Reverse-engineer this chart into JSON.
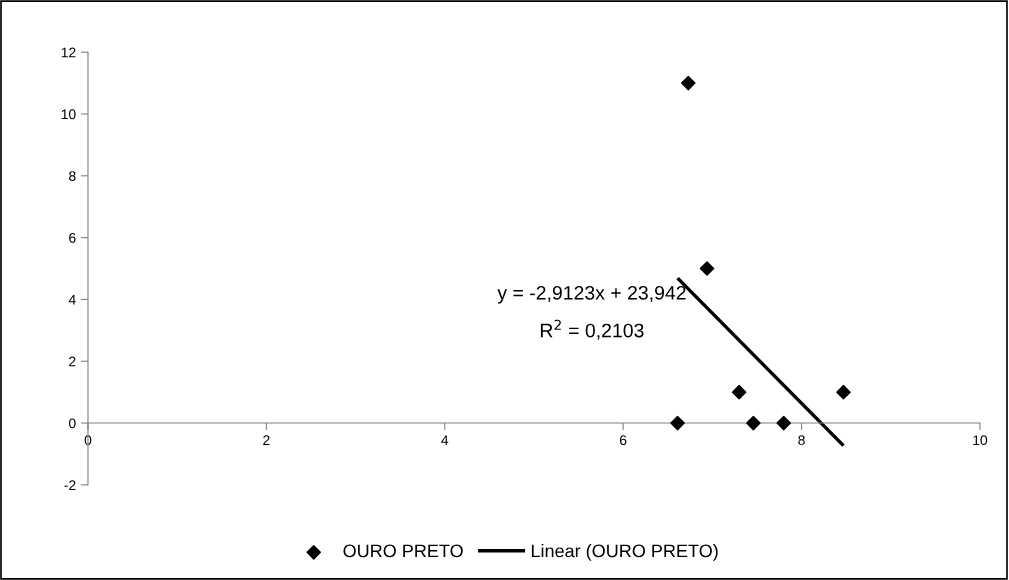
{
  "chart_data": {
    "type": "scatter",
    "xlim": [
      0,
      10
    ],
    "xticks": [
      0,
      2,
      4,
      6,
      8,
      10
    ],
    "ylim": [
      -2,
      12
    ],
    "yticks": [
      -2,
      0,
      2,
      4,
      6,
      8,
      10,
      12
    ],
    "grid": false,
    "legend": "bottom",
    "marker": "diamond",
    "annotations": [
      "y = -2,9123x + 23,942",
      "R$^{2}$ = 0,2103"
    ],
    "series": [
      {
        "name": "OURO PRETO",
        "color": "#000000",
        "x": [
          6.61,
          6.73,
          6.94,
          7.3,
          7.46,
          7.8,
          8.47
        ],
        "values": [
          0,
          11,
          5,
          1,
          0,
          0,
          1
        ]
      },
      {
        "name": "Linear (OURO PRETO)",
        "type": "line",
        "marker": "none",
        "line_style": "solid",
        "color": "#000000",
        "x": [
          6.61,
          8.47
        ],
        "values": [
          4.69,
          -0.73
        ]
      }
    ]
  }
}
